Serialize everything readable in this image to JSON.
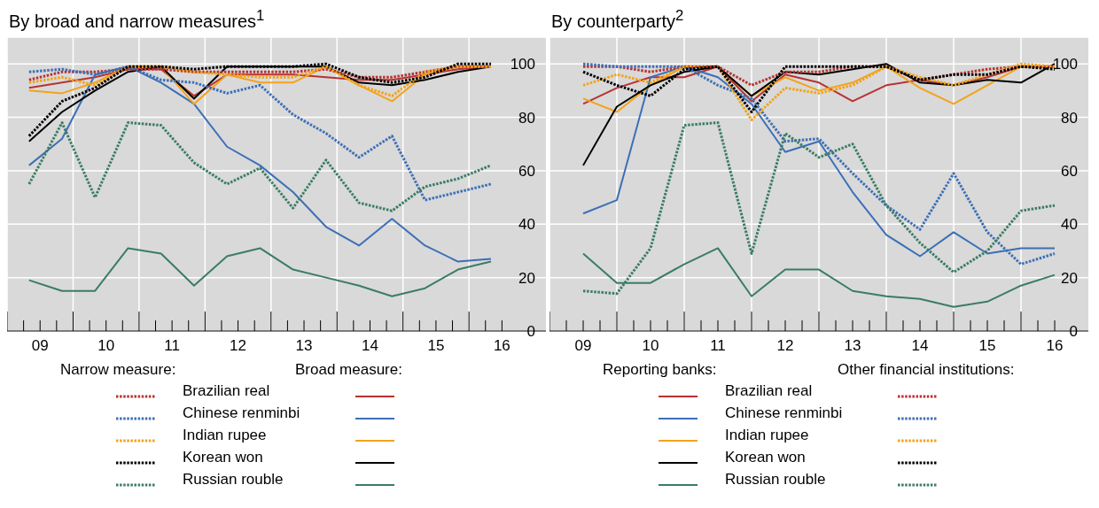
{
  "chart_data": [
    {
      "type": "line",
      "title": "By broad and narrow measures$^{1}$",
      "annotations": [
        "Narrow measure:",
        "Broad measure:"
      ],
      "x": [
        "2009-05",
        "2009-11",
        "2010-05",
        "2010-11",
        "2011-05",
        "2011-11",
        "2012-05",
        "2012-11",
        "2013-05",
        "2013-11",
        "2014-05",
        "2014-11",
        "2015-05",
        "2015-11",
        "2016-05"
      ],
      "series": [
        {
          "name": "Brazilian real",
          "color": "#b83232",
          "line_style": "dotted",
          "values": [
            94,
            97,
            97,
            98,
            98,
            97,
            97,
            97,
            97,
            98,
            95,
            95,
            97,
            99,
            99
          ]
        },
        {
          "color": "#b83232",
          "line_style": "solid",
          "values": [
            91,
            93,
            95,
            98,
            98,
            88,
            96,
            96,
            96,
            95,
            94,
            94,
            96,
            98,
            99
          ]
        },
        {
          "name": "Chinese renminbi",
          "color": "#3d6fb6",
          "line_style": "dotted",
          "values": [
            97,
            98,
            96,
            99,
            94,
            93,
            89,
            92,
            81,
            74,
            65,
            73,
            49,
            52,
            55
          ]
        },
        {
          "color": "#3d6fb6",
          "line_style": "solid",
          "values": [
            62,
            72,
            96,
            99,
            93,
            85,
            69,
            62,
            52,
            39,
            32,
            42,
            32,
            26,
            27
          ]
        },
        {
          "name": "Indian rupee",
          "color": "#f2a31b",
          "line_style": "dotted",
          "values": [
            93,
            95,
            92,
            99,
            99,
            97,
            96,
            95,
            95,
            99,
            92,
            88,
            97,
            99,
            99
          ]
        },
        {
          "color": "#f2a31b",
          "line_style": "solid",
          "values": [
            90,
            89,
            93,
            99,
            99,
            85,
            96,
            93,
            93,
            99,
            92,
            86,
            96,
            99,
            99
          ]
        },
        {
          "name": "Korean won",
          "color": "#000000",
          "line_style": "dotted",
          "values": [
            73,
            86,
            91,
            99,
            99,
            98,
            99,
            99,
            99,
            100,
            95,
            93,
            95,
            100,
            100
          ]
        },
        {
          "color": "#000000",
          "line_style": "solid",
          "values": [
            71,
            82,
            90,
            97,
            99,
            87,
            99,
            99,
            99,
            99,
            93,
            92,
            94,
            97,
            99
          ]
        },
        {
          "name": "Russian rouble",
          "color": "#3a7d63",
          "line_style": "dotted",
          "values": [
            55,
            78,
            50,
            78,
            77,
            63,
            55,
            61,
            46,
            64,
            48,
            45,
            54,
            57,
            62
          ]
        },
        {
          "color": "#3a7d63",
          "line_style": "solid",
          "values": [
            19,
            15,
            15,
            31,
            29,
            17,
            28,
            31,
            23,
            20,
            17,
            13,
            16,
            23,
            26
          ]
        }
      ],
      "xlim": [
        "2009-01",
        "2017-03"
      ],
      "ylim": [
        0,
        110
      ],
      "yticks": [
        0,
        20,
        40,
        60,
        80,
        100
      ],
      "xticks": [
        {
          "value": "2009-01",
          "label": null
        },
        {
          "value": "2009-04",
          "label": null
        },
        {
          "value": "2009-07",
          "label": "09"
        },
        {
          "value": "2009-10",
          "label": null
        },
        {
          "value": "2010-01",
          "label": null
        },
        {
          "value": "2010-04",
          "label": null
        },
        {
          "value": "2010-07",
          "label": "10"
        },
        {
          "value": "2010-10",
          "label": null
        },
        {
          "value": "2011-01",
          "label": null
        },
        {
          "value": "2011-04",
          "label": null
        },
        {
          "value": "2011-07",
          "label": "11"
        },
        {
          "value": "2011-10",
          "label": null
        },
        {
          "value": "2012-01",
          "label": null
        },
        {
          "value": "2012-04",
          "label": null
        },
        {
          "value": "2012-07",
          "label": "12"
        },
        {
          "value": "2012-10",
          "label": null
        },
        {
          "value": "2013-01",
          "label": null
        },
        {
          "value": "2013-04",
          "label": null
        },
        {
          "value": "2013-07",
          "label": "13"
        },
        {
          "value": "2013-10",
          "label": null
        },
        {
          "value": "2014-01",
          "label": null
        },
        {
          "value": "2014-04",
          "label": null
        },
        {
          "value": "2014-07",
          "label": "14"
        },
        {
          "value": "2014-10",
          "label": null
        },
        {
          "value": "2015-01",
          "label": null
        },
        {
          "value": "2015-04",
          "label": null
        },
        {
          "value": "2015-07",
          "label": "15"
        },
        {
          "value": "2015-10",
          "label": null
        },
        {
          "value": "2016-01",
          "label": null
        },
        {
          "value": "2016-04",
          "label": null
        },
        {
          "value": "2016-07",
          "label": "16"
        }
      ],
      "grid": true,
      "legend": "bottom"
    },
    {
      "type": "line",
      "title": "By counterparty$^{2}$",
      "annotations": [
        "Reporting banks:",
        "Other financial institutions:"
      ],
      "x": [
        "2009-07",
        "2010-01",
        "2010-07",
        "2011-01",
        "2011-07",
        "2012-01",
        "2012-07",
        "2013-01",
        "2013-07",
        "2014-01",
        "2014-07",
        "2015-01",
        "2015-07",
        "2016-01",
        "2016-07"
      ],
      "series": [
        {
          "name": "Brazilian real",
          "color": "#b83232",
          "line_style": "solid",
          "values": [
            85,
            91,
            95,
            95,
            99,
            86,
            96,
            93,
            86,
            92,
            94,
            92,
            95,
            99,
            99
          ]
        },
        {
          "color": "#b83232",
          "line_style": "dotted",
          "values": [
            99,
            99,
            97,
            99,
            99,
            92,
            97,
            97,
            99,
            99,
            94,
            96,
            98,
            99,
            99
          ]
        },
        {
          "name": "Chinese renminbi",
          "color": "#3d6fb6",
          "line_style": "solid",
          "values": [
            44,
            49,
            95,
            99,
            95,
            85,
            67,
            71,
            52,
            36,
            28,
            37,
            29,
            31,
            31
          ]
        },
        {
          "color": "#3d6fb6",
          "line_style": "dotted",
          "values": [
            100,
            99,
            99,
            99,
            92,
            87,
            71,
            72,
            59,
            47,
            38,
            59,
            37,
            25,
            29
          ]
        },
        {
          "name": "Indian rupee",
          "color": "#f2a31b",
          "line_style": "solid",
          "values": [
            87,
            82,
            92,
            99,
            99,
            88,
            95,
            90,
            93,
            99,
            91,
            85,
            92,
            99,
            99
          ]
        },
        {
          "color": "#f2a31b",
          "line_style": "dotted",
          "values": [
            92,
            96,
            93,
            99,
            99,
            79,
            91,
            89,
            92,
            99,
            95,
            92,
            96,
            100,
            99
          ]
        },
        {
          "name": "Korean won",
          "color": "#000000",
          "line_style": "solid",
          "values": [
            62,
            84,
            92,
            97,
            99,
            88,
            97,
            96,
            98,
            100,
            93,
            92,
            94,
            93,
            100
          ]
        },
        {
          "color": "#000000",
          "line_style": "dotted",
          "values": [
            97,
            92,
            88,
            98,
            99,
            82,
            99,
            99,
            99,
            99,
            94,
            96,
            96,
            99,
            98
          ]
        },
        {
          "name": "Russian rouble",
          "color": "#3a7d63",
          "line_style": "solid",
          "values": [
            29,
            18,
            18,
            25,
            31,
            13,
            23,
            23,
            15,
            13,
            12,
            9,
            11,
            17,
            21
          ]
        },
        {
          "color": "#3a7d63",
          "line_style": "dotted",
          "values": [
            15,
            14,
            31,
            77,
            78,
            29,
            74,
            65,
            70,
            47,
            33,
            22,
            30,
            45,
            47
          ]
        }
      ],
      "xlim": [
        "2009-01",
        "2017-01"
      ],
      "ylim": [
        0,
        110
      ],
      "yticks": [
        0,
        20,
        40,
        60,
        80,
        100
      ],
      "xticks": [
        {
          "value": "2009-01",
          "label": null
        },
        {
          "value": "2009-04",
          "label": null
        },
        {
          "value": "2009-07",
          "label": "09"
        },
        {
          "value": "2009-10",
          "label": null
        },
        {
          "value": "2010-01",
          "label": null
        },
        {
          "value": "2010-04",
          "label": null
        },
        {
          "value": "2010-07",
          "label": "10"
        },
        {
          "value": "2010-10",
          "label": null
        },
        {
          "value": "2011-01",
          "label": null
        },
        {
          "value": "2011-04",
          "label": null
        },
        {
          "value": "2011-07",
          "label": "11"
        },
        {
          "value": "2011-10",
          "label": null
        },
        {
          "value": "2012-01",
          "label": null
        },
        {
          "value": "2012-04",
          "label": null
        },
        {
          "value": "2012-07",
          "label": "12"
        },
        {
          "value": "2012-10",
          "label": null
        },
        {
          "value": "2013-01",
          "label": null
        },
        {
          "value": "2013-04",
          "label": null
        },
        {
          "value": "2013-07",
          "label": "13"
        },
        {
          "value": "2013-10",
          "label": null
        },
        {
          "value": "2014-01",
          "label": null
        },
        {
          "value": "2014-04",
          "label": null
        },
        {
          "value": "2014-07",
          "label": "14"
        },
        {
          "value": "2014-10",
          "label": null
        },
        {
          "value": "2015-01",
          "label": null
        },
        {
          "value": "2015-04",
          "label": null
        },
        {
          "value": "2015-07",
          "label": "15"
        },
        {
          "value": "2015-10",
          "label": null
        },
        {
          "value": "2016-01",
          "label": null
        },
        {
          "value": "2016-04",
          "label": null
        },
        {
          "value": "2016-07",
          "label": "16"
        }
      ],
      "grid": true,
      "legend": "bottom"
    }
  ]
}
